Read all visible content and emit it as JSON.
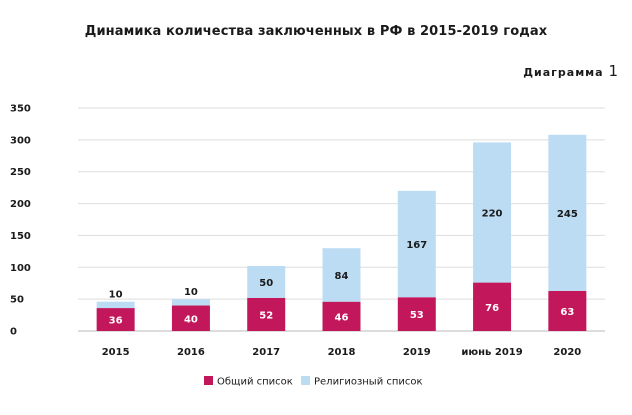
{
  "title": "Динамика количества заключенных в РФ в 2015-2019 годах",
  "caption": {
    "word": "Диаграмма",
    "number": "1"
  },
  "chart_data": {
    "type": "bar",
    "stacked": true,
    "categories": [
      "2015",
      "2016",
      "2017",
      "2018",
      "2019",
      "июнь 2019",
      "2020"
    ],
    "series": [
      {
        "name": "Общий список",
        "color": "#c2185b",
        "values": [
          36,
          40,
          52,
          46,
          53,
          76,
          63
        ]
      },
      {
        "name": "Религиозный список",
        "color": "#bcdcf4",
        "values": [
          10,
          10,
          50,
          84,
          167,
          220,
          245
        ]
      }
    ],
    "y_ticks": [
      0,
      50,
      100,
      150,
      200,
      250,
      300,
      350
    ],
    "ylim": [
      0,
      350
    ],
    "grid": true,
    "legend": "bottom-center"
  }
}
